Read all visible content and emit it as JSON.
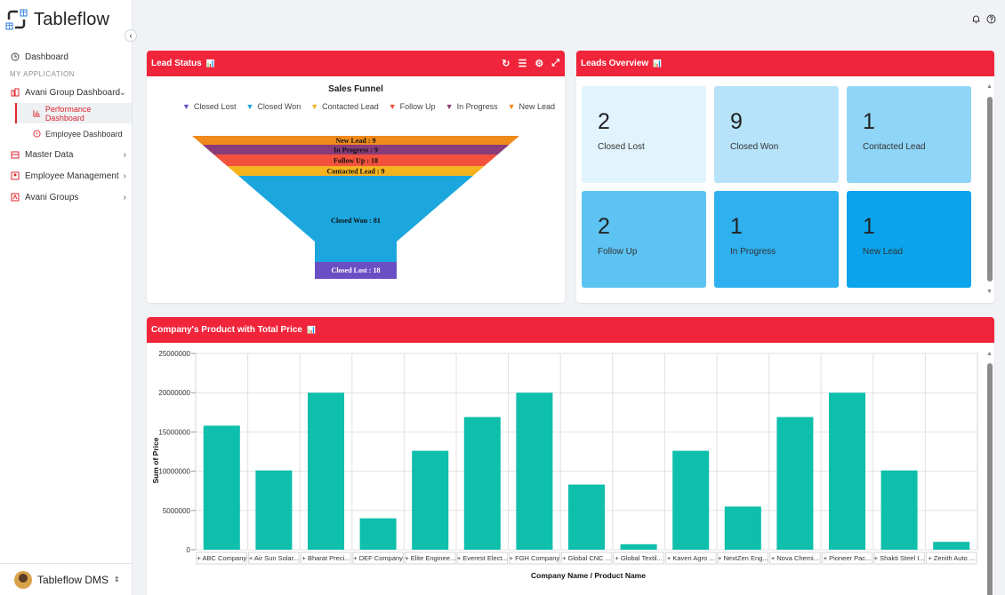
{
  "app": {
    "name": "Tableflow"
  },
  "topbar": {
    "icons": [
      "bell-icon",
      "help-icon"
    ]
  },
  "sidebar": {
    "dashboard": "Dashboard",
    "section": "MY APPLICATION",
    "items": [
      {
        "label": "Avani Group Dashboard",
        "icon": "building-icon",
        "expanded": true
      },
      {
        "label": "Master Data",
        "icon": "database-icon"
      },
      {
        "label": "Employee Management",
        "icon": "people-icon"
      },
      {
        "label": "Avani Groups",
        "icon": "group-icon"
      }
    ],
    "sub_items": [
      {
        "label": "Performance Dashboard",
        "active": true
      },
      {
        "label": "Employee Dashboard",
        "active": false
      }
    ],
    "user": "Tableflow DMS"
  },
  "lead_status": {
    "title": "Lead Status",
    "chart_title": "Sales Funnel",
    "legend": [
      {
        "label": "Closed Lost",
        "color": "#6a4fc4"
      },
      {
        "label": "Closed Won",
        "color": "#1ba6de"
      },
      {
        "label": "Contacted Lead",
        "color": "#f6b320"
      },
      {
        "label": "Follow Up",
        "color": "#f4513d"
      },
      {
        "label": "In Progress",
        "color": "#8a3c78"
      },
      {
        "label": "New Lead",
        "color": "#f08a1c"
      }
    ],
    "funnel_labels": [
      "New Lead : 9",
      "In Progress : 9",
      "Follow Up : 18",
      "Contacted Lead : 9",
      "Closed Won : 81",
      "Closed Lost : 18"
    ]
  },
  "leads_overview": {
    "title": "Leads Overview",
    "tiles": [
      {
        "count": "2",
        "label": "Closed Lost",
        "color": "#e1f3fc"
      },
      {
        "count": "9",
        "label": "Closed Won",
        "color": "#b6e3f9"
      },
      {
        "count": "1",
        "label": "Contacted Lead",
        "color": "#8fd5f7"
      },
      {
        "count": "2",
        "label": "Follow Up",
        "color": "#5dc3f2"
      },
      {
        "count": "1",
        "label": "In Progress",
        "color": "#2fb0ef"
      },
      {
        "count": "1",
        "label": "New Lead",
        "color": "#0aa3ec"
      }
    ]
  },
  "product_chart": {
    "title": "Company's Product with Total Price"
  },
  "chart_data": {
    "type": "bar",
    "xlabel": "Company Name / Product Name",
    "ylabel": "Sum of Price",
    "ylim": [
      0,
      25000000
    ],
    "yticks": [
      "25000000",
      "20000000",
      "15000000",
      "10000000",
      "5000000",
      "0"
    ],
    "categories": [
      "+ ABC Company",
      "+ Air Sun Solar...",
      "+ Bharat Preci...",
      "+ DEF Company",
      "+ Elite Enginee...",
      "+ Everest Elect...",
      "+ FGH Company",
      "+ Global CNC ...",
      "+ Global Textil...",
      "+ Kaveri Agro ...",
      "+ NextZen Eng...",
      "+ Nova Chemi...",
      "+ Pioneer Pac...",
      "+ Shakti Steel I...",
      "+ Zenith Auto ..."
    ],
    "values": [
      15800000,
      10100000,
      20000000,
      4000000,
      12600000,
      16900000,
      20000000,
      8300000,
      700000,
      12600000,
      5500000,
      16900000,
      20000000,
      10100000,
      1000000
    ],
    "color": "#0ebfac",
    "grid": true
  }
}
